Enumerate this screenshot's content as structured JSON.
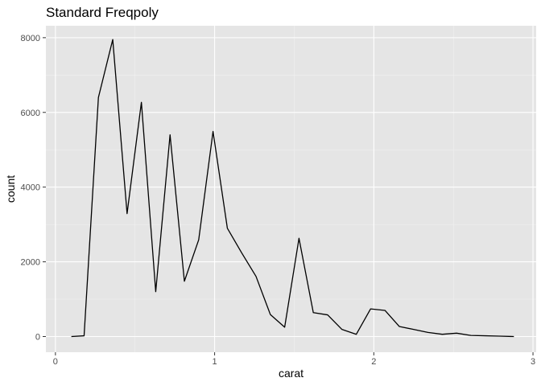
{
  "chart_data": {
    "type": "line",
    "title": "Standard Freqpoly",
    "xlabel": "carat",
    "ylabel": "count",
    "xlim": [
      -0.06,
      3.02
    ],
    "ylim": [
      -420,
      8320
    ],
    "x_ticks": [
      0,
      1,
      2,
      3
    ],
    "x_tick_labels": [
      "0",
      "1",
      "2",
      "3"
    ],
    "y_ticks": [
      0,
      2000,
      4000,
      6000,
      8000
    ],
    "y_tick_labels": [
      "0",
      "2000",
      "4000",
      "6000",
      "8000"
    ],
    "grid": true,
    "legend": "none",
    "colors": {
      "panel_background": "#e5e5e5",
      "grid_major": "#ffffff",
      "grid_minor": "#f2f2f2",
      "line": "#000000",
      "tick_text": "#4d4d4d"
    },
    "series": [
      {
        "x": [
          0.1,
          0.18,
          0.27,
          0.36,
          0.45,
          0.54,
          0.63,
          0.72,
          0.81,
          0.9,
          0.99,
          1.08,
          1.17,
          1.26,
          1.35,
          1.44,
          1.53,
          1.62,
          1.71,
          1.8,
          1.89,
          1.98,
          2.07,
          2.16,
          2.25,
          2.34,
          2.43,
          2.52,
          2.61,
          2.7,
          2.79,
          2.88
        ],
        "y": [
          0,
          20,
          6400,
          7950,
          3290,
          6270,
          1200,
          5400,
          1480,
          2590,
          5490,
          2900,
          2240,
          1610,
          590,
          250,
          2630,
          640,
          580,
          190,
          60,
          740,
          700,
          270,
          190,
          110,
          60,
          90,
          30,
          20,
          10,
          0
        ]
      }
    ]
  }
}
